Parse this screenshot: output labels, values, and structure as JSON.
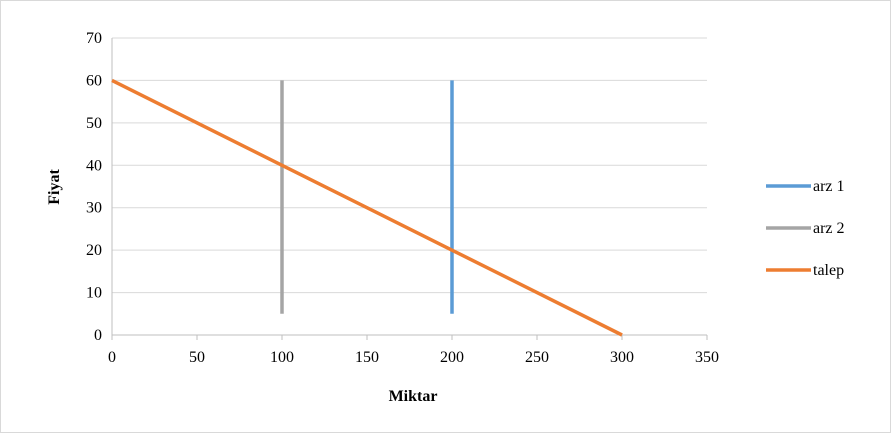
{
  "chart_data": {
    "type": "line",
    "title": "",
    "xlabel": "Miktar",
    "ylabel": "Fiyat",
    "xlim": [
      0,
      350
    ],
    "ylim": [
      0,
      70
    ],
    "xticks": [
      0,
      50,
      100,
      150,
      200,
      250,
      300,
      350
    ],
    "yticks": [
      0,
      10,
      20,
      30,
      40,
      50,
      60,
      70
    ],
    "grid": "horizontal",
    "legend_position": "right",
    "series": [
      {
        "name": "arz 1",
        "color": "#5b9bd5",
        "points": [
          [
            200,
            5
          ],
          [
            200,
            60
          ]
        ]
      },
      {
        "name": "arz 2",
        "color": "#a5a5a5",
        "points": [
          [
            100,
            5
          ],
          [
            100,
            60
          ]
        ]
      },
      {
        "name": "talep",
        "color": "#ed7d31",
        "points": [
          [
            0,
            60
          ],
          [
            100,
            40
          ],
          [
            200,
            20
          ],
          [
            300,
            0
          ]
        ]
      }
    ]
  }
}
